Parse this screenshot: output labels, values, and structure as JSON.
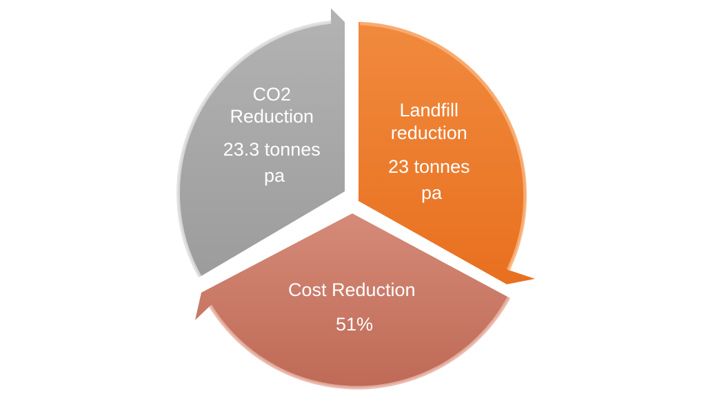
{
  "segments": [
    {
      "id": "co2",
      "lines": [
        "CO2",
        "Reduction",
        "23.3 tonnes",
        "pa"
      ],
      "color": "#a6a6a6",
      "color_light": "#c9c9c9",
      "color_dark": "#8f8f8f"
    },
    {
      "id": "landfill",
      "lines": [
        "Landfill",
        "reduction",
        "23 tonnes",
        "pa"
      ],
      "color": "#ed7d31",
      "color_light": "#f7a667",
      "color_dark": "#e06a1a"
    },
    {
      "id": "cost",
      "lines": [
        "Cost Reduction",
        "51%"
      ],
      "color": "#c87562",
      "color_light": "#dc9a88",
      "color_dark": "#b86452"
    }
  ]
}
